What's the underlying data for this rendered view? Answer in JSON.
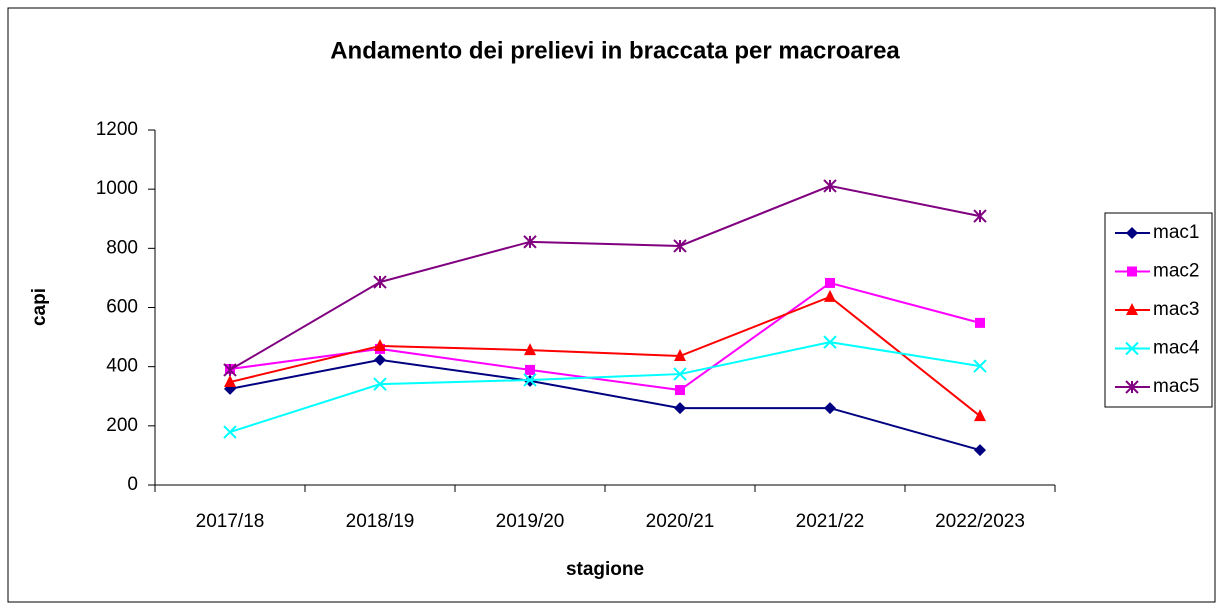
{
  "chart_data": {
    "type": "line",
    "title": "Andamento dei prelievi in braccata per macroarea",
    "x_label": "stagione",
    "y_label": "capi",
    "categories": [
      "2017/18",
      "2018/19",
      "2019/20",
      "2020/21",
      "2021/22",
      "2022/2023"
    ],
    "series": [
      {
        "name": "mac1",
        "color": "#000080",
        "marker": "diamond",
        "values": [
          325,
          423,
          352,
          260,
          260,
          118
        ]
      },
      {
        "name": "mac2",
        "color": "#ff00ff",
        "marker": "square",
        "values": [
          392,
          460,
          389,
          321,
          683,
          548
        ]
      },
      {
        "name": "mac3",
        "color": "#ff0000",
        "marker": "triangle",
        "values": [
          348,
          470,
          456,
          436,
          636,
          233
        ]
      },
      {
        "name": "mac4",
        "color": "#00ffff",
        "marker": "x",
        "values": [
          179,
          341,
          355,
          375,
          483,
          402
        ]
      },
      {
        "name": "mac5",
        "color": "#800080",
        "marker": "asterisk",
        "values": [
          389,
          686,
          822,
          808,
          1011,
          909
        ]
      }
    ],
    "ylim": [
      0,
      1200
    ],
    "yticks": [
      0,
      200,
      400,
      600,
      800,
      1000,
      1200
    ],
    "grid": false,
    "legend": "right"
  }
}
